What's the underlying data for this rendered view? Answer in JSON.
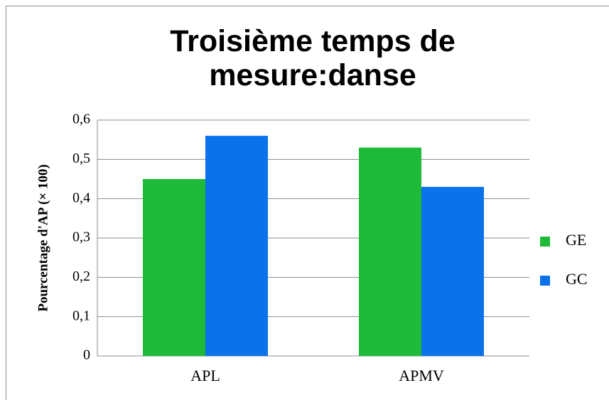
{
  "chart_data": {
    "type": "bar",
    "title": "Troisième temps de mesure:danse",
    "y_label": "Pourcentage d'AP (× 100)",
    "categories": [
      "APL",
      "APMV"
    ],
    "series": [
      {
        "name": "GE",
        "color": "#1fba3a",
        "values": [
          0.45,
          0.53
        ]
      },
      {
        "name": "GC",
        "color": "#0a72ea",
        "values": [
          0.56,
          0.43
        ]
      }
    ],
    "ylim": [
      0,
      0.6
    ],
    "yticks": [
      0,
      {
        "value": 0.1,
        "label": "0,1"
      },
      {
        "value": 0.2,
        "label": "0,2"
      },
      {
        "value": 0.3,
        "label": "0,3"
      },
      {
        "value": 0.4,
        "label": "0,4"
      },
      {
        "value": 0.5,
        "label": "0,5"
      },
      {
        "value": 0.6,
        "label": "0,6"
      }
    ],
    "grid": true,
    "legend": "right"
  }
}
